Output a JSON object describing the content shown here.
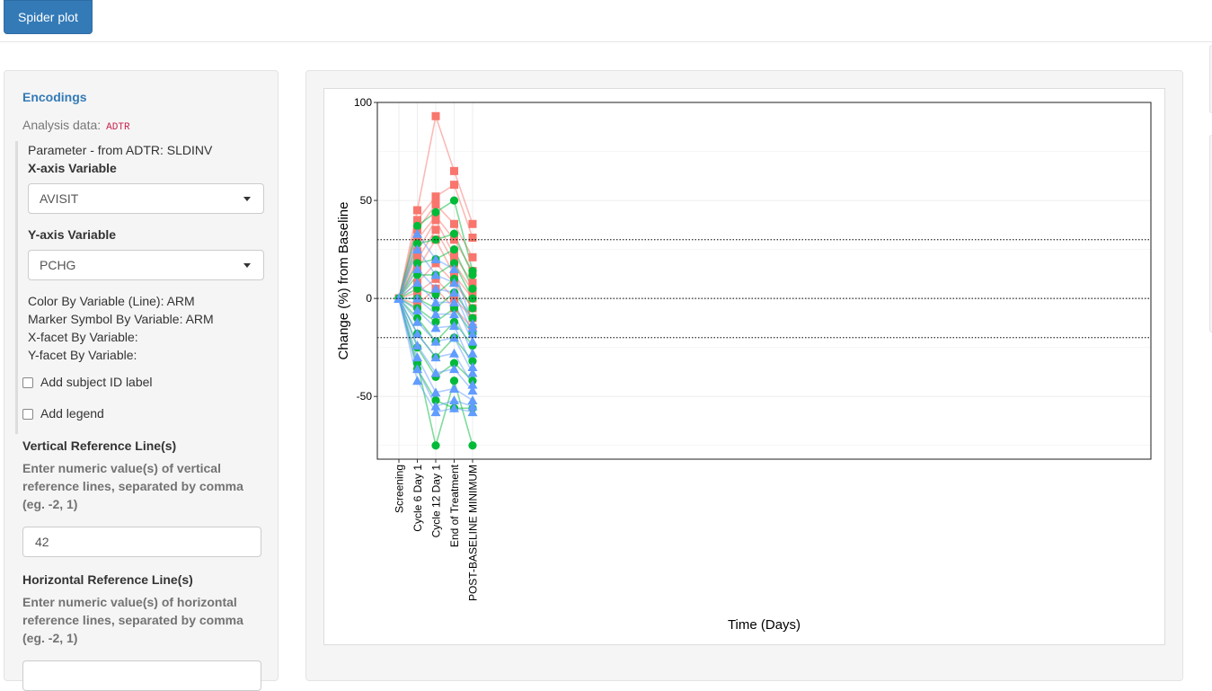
{
  "tab": {
    "label": "Spider plot"
  },
  "encodings": {
    "title": "Encodings",
    "analysis_label": "Analysis data:",
    "analysis_dataset": "ADTR",
    "parameter_text": "Parameter - from ADTR: SLDINV",
    "x_axis_label": "X-axis Variable",
    "x_axis_value": "AVISIT",
    "y_axis_label": "Y-axis Variable",
    "y_axis_value": "PCHG",
    "color_by": "Color By Variable (Line): ARM",
    "marker_by": "Marker Symbol By Variable: ARM",
    "x_facet": "X-facet By Variable:",
    "y_facet": "Y-facet By Variable:"
  },
  "options": {
    "subject_label": "Add subject ID label",
    "subject_checked": false,
    "legend_label": "Add legend",
    "legend_checked": false,
    "vref_title": "Vertical Reference Line(s)",
    "vref_help": "Enter numeric value(s) of vertical reference lines, separated by comma (eg. -2, 1)",
    "vref_value": "42",
    "href_title": "Horizontal Reference Line(s)",
    "href_help": "Enter numeric value(s) of horizontal reference lines, separated by comma (eg. -2, 1)"
  },
  "chart_data": {
    "type": "line",
    "xlabel": "Time (Days)",
    "ylabel": "Change (%) from Baseline",
    "categories": [
      "Screening",
      "Cycle 6 Day 1",
      "Cycle 12 Day 1",
      "End of Treatment",
      "POST-BASELINE MINIMUM"
    ],
    "ylim": [
      -82,
      100
    ],
    "yticks": [
      -50,
      0,
      50,
      100
    ],
    "reference_lines": [
      {
        "y": 30,
        "style": "dotted"
      },
      {
        "y": -20,
        "style": "dotted"
      },
      {
        "y": 0,
        "style": "dotted"
      }
    ],
    "grid": true,
    "legend": "none",
    "colors": [
      "#f8766d",
      "#00ba38",
      "#619cff"
    ],
    "series": [
      {
        "color": "#f8766d",
        "marker": "square",
        "values": [
          0,
          45,
          93,
          65,
          38
        ]
      },
      {
        "color": "#f8766d",
        "marker": "square",
        "values": [
          0,
          40,
          52,
          58,
          31
        ]
      },
      {
        "color": "#f8766d",
        "marker": "square",
        "values": [
          0,
          35,
          48,
          38,
          21
        ]
      },
      {
        "color": "#f8766d",
        "marker": "square",
        "values": [
          0,
          30,
          42,
          30,
          14
        ]
      },
      {
        "color": "#f8766d",
        "marker": "square",
        "values": [
          0,
          24,
          40,
          22,
          8
        ]
      },
      {
        "color": "#f8766d",
        "marker": "square",
        "values": [
          0,
          20,
          35,
          18,
          4
        ]
      },
      {
        "color": "#f8766d",
        "marker": "square",
        "values": [
          0,
          15,
          30,
          12,
          0
        ]
      },
      {
        "color": "#f8766d",
        "marker": "square",
        "values": [
          0,
          8,
          18,
          8,
          -5
        ]
      },
      {
        "color": "#f8766d",
        "marker": "square",
        "values": [
          0,
          3,
          10,
          0,
          -10
        ]
      },
      {
        "color": "#f8766d",
        "marker": "square",
        "values": [
          0,
          -3,
          5,
          -5,
          -15
        ]
      },
      {
        "color": "#00ba38",
        "marker": "circle",
        "values": [
          0,
          37,
          44,
          50,
          14
        ]
      },
      {
        "color": "#00ba38",
        "marker": "circle",
        "values": [
          0,
          28,
          30,
          33,
          12
        ]
      },
      {
        "color": "#00ba38",
        "marker": "circle",
        "values": [
          0,
          18,
          20,
          25,
          5
        ]
      },
      {
        "color": "#00ba38",
        "marker": "circle",
        "values": [
          0,
          12,
          12,
          18,
          0
        ]
      },
      {
        "color": "#00ba38",
        "marker": "circle",
        "values": [
          0,
          5,
          2,
          10,
          -5
        ]
      },
      {
        "color": "#00ba38",
        "marker": "circle",
        "values": [
          0,
          0,
          -5,
          3,
          -10
        ]
      },
      {
        "color": "#00ba38",
        "marker": "circle",
        "values": [
          0,
          -5,
          -12,
          -5,
          -18
        ]
      },
      {
        "color": "#00ba38",
        "marker": "circle",
        "values": [
          0,
          -10,
          -22,
          -12,
          -24
        ]
      },
      {
        "color": "#00ba38",
        "marker": "circle",
        "values": [
          0,
          -18,
          -30,
          -20,
          -32
        ]
      },
      {
        "color": "#00ba38",
        "marker": "circle",
        "values": [
          0,
          -25,
          -40,
          -33,
          -42
        ]
      },
      {
        "color": "#00ba38",
        "marker": "circle",
        "values": [
          0,
          -33,
          -75,
          -42,
          -75
        ]
      },
      {
        "color": "#00ba38",
        "marker": "circle",
        "values": [
          0,
          -36,
          -52,
          -56,
          -56
        ]
      },
      {
        "color": "#619cff",
        "marker": "triangle",
        "values": [
          0,
          33,
          20,
          15,
          -13
        ]
      },
      {
        "color": "#619cff",
        "marker": "triangle",
        "values": [
          0,
          25,
          12,
          8,
          -15
        ]
      },
      {
        "color": "#619cff",
        "marker": "triangle",
        "values": [
          0,
          15,
          5,
          3,
          -18
        ]
      },
      {
        "color": "#619cff",
        "marker": "triangle",
        "values": [
          0,
          8,
          -2,
          -2,
          -22
        ]
      },
      {
        "color": "#619cff",
        "marker": "triangle",
        "values": [
          0,
          0,
          -8,
          -8,
          -28
        ]
      },
      {
        "color": "#619cff",
        "marker": "triangle",
        "values": [
          0,
          -6,
          -15,
          -14,
          -35
        ]
      },
      {
        "color": "#619cff",
        "marker": "triangle",
        "values": [
          0,
          -12,
          -22,
          -20,
          -38
        ]
      },
      {
        "color": "#619cff",
        "marker": "triangle",
        "values": [
          0,
          -18,
          -30,
          -28,
          -44
        ]
      },
      {
        "color": "#619cff",
        "marker": "triangle",
        "values": [
          0,
          -24,
          -38,
          -36,
          -47
        ]
      },
      {
        "color": "#619cff",
        "marker": "triangle",
        "values": [
          0,
          -30,
          -48,
          -46,
          -52
        ]
      },
      {
        "color": "#619cff",
        "marker": "triangle",
        "values": [
          0,
          -36,
          -55,
          -52,
          -55
        ]
      },
      {
        "color": "#619cff",
        "marker": "triangle",
        "values": [
          0,
          -42,
          -58,
          -56,
          -58
        ]
      }
    ]
  }
}
